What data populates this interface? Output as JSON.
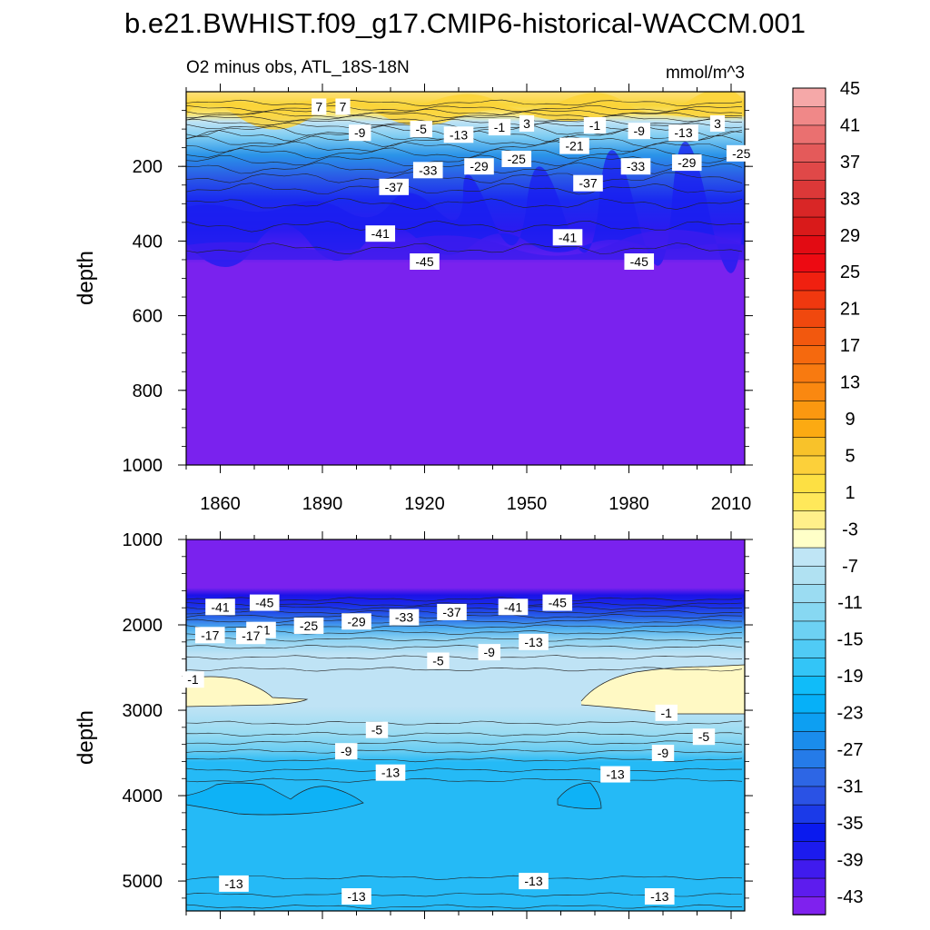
{
  "figure_title": "b.e21.BWHIST.f09_g17.CMIP6-historical-WACCM.001",
  "colors": {
    "upper_fill": "#7a22ee",
    "deep_blue": "#1419ee",
    "mid_blue": "#2a59e6",
    "light_blue": "#bfe3f5",
    "pale_yellow": "#fff9c4",
    "yellow": "#f7d53a",
    "sky_blue": "#25baf6"
  },
  "chart_data": [
    {
      "type": "contour",
      "panel": "upper",
      "title_left": "O2 minus obs, ATL_18S-18N",
      "title_right": "mmol/m^3",
      "xlabel": "",
      "ylabel": "depth",
      "xlim": [
        1850,
        2014
      ],
      "ylim": [
        1000,
        0
      ],
      "x_ticks": [
        "1860",
        "1890",
        "1920",
        "1950",
        "1980",
        "2010"
      ],
      "x_tick_values": [
        1860,
        1890,
        1920,
        1950,
        1980,
        2010
      ],
      "y_ticks": [
        "200",
        "400",
        "600",
        "800",
        "1000"
      ],
      "y_tick_values": [
        200,
        400,
        600,
        800,
        1000
      ],
      "contour_labels": [
        {
          "text": "7",
          "year": 1889,
          "depth": 40
        },
        {
          "text": "7",
          "year": 1896,
          "depth": 40
        },
        {
          "text": "-9",
          "year": 1901,
          "depth": 110
        },
        {
          "text": "-5",
          "year": 1919,
          "depth": 100
        },
        {
          "text": "-13",
          "year": 1930,
          "depth": 115
        },
        {
          "text": "-1",
          "year": 1942,
          "depth": 95
        },
        {
          "text": "3",
          "year": 1950,
          "depth": 85
        },
        {
          "text": "-1",
          "year": 1970,
          "depth": 90
        },
        {
          "text": "-9",
          "year": 1983,
          "depth": 105
        },
        {
          "text": "-13",
          "year": 1996,
          "depth": 110
        },
        {
          "text": "3",
          "year": 2006,
          "depth": 85
        },
        {
          "text": "-21",
          "year": 1964,
          "depth": 145
        },
        {
          "text": "-25",
          "year": 1947,
          "depth": 180
        },
        {
          "text": "-25",
          "year": 2013,
          "depth": 165
        },
        {
          "text": "-33",
          "year": 1921,
          "depth": 210
        },
        {
          "text": "-29",
          "year": 1936,
          "depth": 200
        },
        {
          "text": "-33",
          "year": 1982,
          "depth": 200
        },
        {
          "text": "-29",
          "year": 1997,
          "depth": 190
        },
        {
          "text": "-37",
          "year": 1911,
          "depth": 255
        },
        {
          "text": "-37",
          "year": 1968,
          "depth": 245
        },
        {
          "text": "-41",
          "year": 1907,
          "depth": 380
        },
        {
          "text": "-41",
          "year": 1962,
          "depth": 390
        },
        {
          "text": "-45",
          "year": 1920,
          "depth": 455
        },
        {
          "text": "-45",
          "year": 1983,
          "depth": 455
        }
      ]
    },
    {
      "type": "contour",
      "panel": "lower",
      "xlabel": "",
      "ylabel": "depth",
      "xlim": [
        1850,
        2014
      ],
      "ylim": [
        5350,
        1000
      ],
      "y_ticks": [
        "1000",
        "2000",
        "3000",
        "4000",
        "5000"
      ],
      "y_tick_values": [
        1000,
        2000,
        3000,
        4000,
        5000
      ],
      "contour_labels": [
        {
          "text": "-41",
          "year": 1860,
          "depth": 1790
        },
        {
          "text": "-45",
          "year": 1873,
          "depth": 1740
        },
        {
          "text": "-37",
          "year": 1928,
          "depth": 1850
        },
        {
          "text": "-41",
          "year": 1946,
          "depth": 1790
        },
        {
          "text": "-45",
          "year": 1959,
          "depth": 1740
        },
        {
          "text": "-33",
          "year": 1914,
          "depth": 1910
        },
        {
          "text": "-29",
          "year": 1900,
          "depth": 1960
        },
        {
          "text": "-25",
          "year": 1886,
          "depth": 2010
        },
        {
          "text": "-21",
          "year": 1872,
          "depth": 2060
        },
        {
          "text": "-17",
          "year": 1857,
          "depth": 2120
        },
        {
          "text": "-17",
          "year": 1869,
          "depth": 2130
        },
        {
          "text": "-13",
          "year": 1952,
          "depth": 2200
        },
        {
          "text": "-9",
          "year": 1939,
          "depth": 2320
        },
        {
          "text": "-5",
          "year": 1924,
          "depth": 2420
        },
        {
          "text": "-1",
          "year": 1852,
          "depth": 2640
        },
        {
          "text": "-1",
          "year": 1991,
          "depth": 3030
        },
        {
          "text": "-5",
          "year": 1906,
          "depth": 3230
        },
        {
          "text": "-5",
          "year": 2002,
          "depth": 3310
        },
        {
          "text": "-9",
          "year": 1897,
          "depth": 3480
        },
        {
          "text": "-9",
          "year": 1990,
          "depth": 3500
        },
        {
          "text": "-13",
          "year": 1910,
          "depth": 3730
        },
        {
          "text": "-13",
          "year": 1976,
          "depth": 3750
        },
        {
          "text": "-13",
          "year": 1864,
          "depth": 5030
        },
        {
          "text": "-13",
          "year": 1900,
          "depth": 5180
        },
        {
          "text": "-13",
          "year": 1952,
          "depth": 5000
        },
        {
          "text": "-13",
          "year": 1989,
          "depth": 5180
        }
      ]
    },
    {
      "type": "colorbar",
      "levels": [
        -45,
        -43,
        -41,
        -39,
        -37,
        -35,
        -33,
        -31,
        -29,
        -27,
        -25,
        -23,
        -21,
        -19,
        -17,
        -15,
        -13,
        -11,
        -9,
        -7,
        -5,
        -3,
        -1,
        1,
        3,
        5,
        7,
        9,
        11,
        13,
        15,
        17,
        19,
        21,
        23,
        25,
        27,
        29,
        31,
        33,
        35,
        37,
        39,
        41,
        43,
        45
      ],
      "tick_labels": [
        "-43",
        "-39",
        "-35",
        "-31",
        "-27",
        "-23",
        "-19",
        "-15",
        "-11",
        "-7",
        "-3",
        "1",
        "5",
        "9",
        "13",
        "17",
        "21",
        "25",
        "29",
        "33",
        "37",
        "41",
        "45"
      ],
      "colors": [
        "#7f21ee",
        "#5d1cee",
        "#401bee",
        "#1c1bee",
        "#0a1aee",
        "#1b3ae8",
        "#2a52e5",
        "#2d66e5",
        "#257be8",
        "#1a8cec",
        "#0d9ff2",
        "#06b0f8",
        "#10bcf9",
        "#33c5f7",
        "#50cbf5",
        "#6dd1f3",
        "#87d8f2",
        "#9bdcf2",
        "#b0e1f2",
        "#bfe5f5",
        "#ffffc8",
        "#ffef8a",
        "#ffe85a",
        "#fde043",
        "#fcd03a",
        "#f8c22a",
        "#fcaa12",
        "#fb9810",
        "#fa8810",
        "#f87a10",
        "#f5690e",
        "#f2580e",
        "#f0480e",
        "#f0380f",
        "#f02010",
        "#ed0a12",
        "#e20b13",
        "#d91a1a",
        "#d92626",
        "#dc3838",
        "#e04848",
        "#e45a5a",
        "#ea7070",
        "#f08888",
        "#f5a8a8"
      ]
    }
  ]
}
